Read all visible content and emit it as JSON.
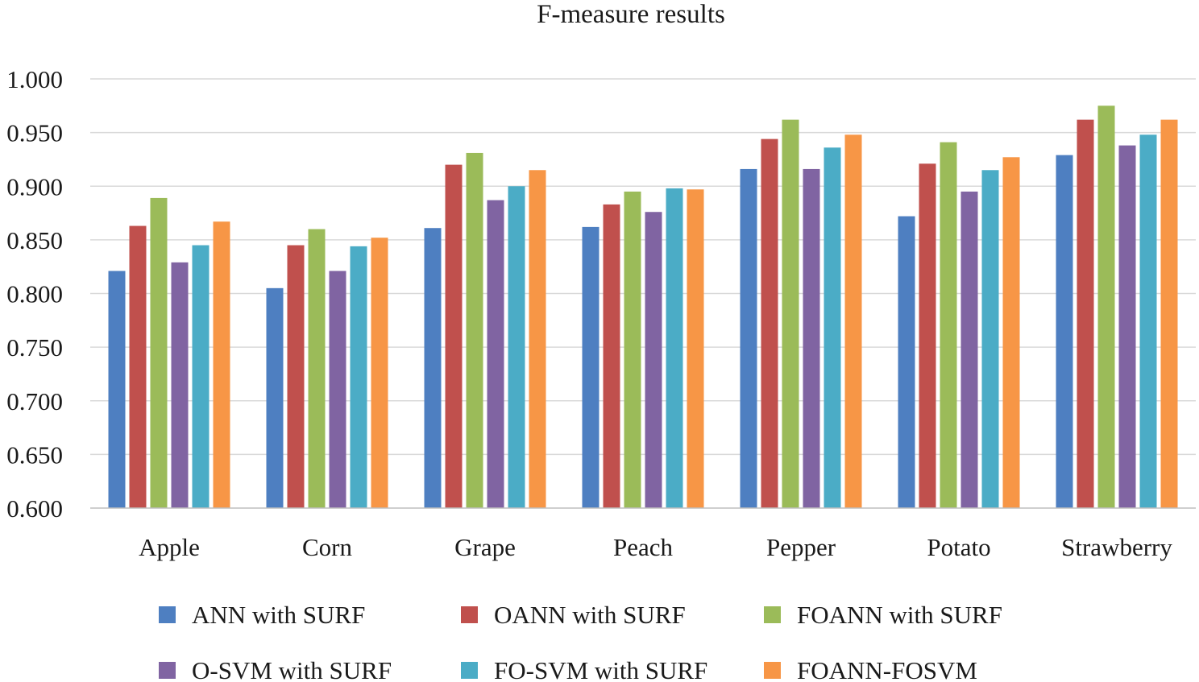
{
  "chart_data": {
    "type": "bar",
    "title": "F-measure results",
    "xlabel": "",
    "ylabel": "",
    "ylim": [
      0.6,
      1.0
    ],
    "ytick_step": 0.05,
    "ytick_labels": [
      "0.600",
      "0.650",
      "0.700",
      "0.750",
      "0.800",
      "0.850",
      "0.900",
      "0.950",
      "1.000"
    ],
    "grid": true,
    "legend_position": "bottom",
    "categories": [
      "Apple",
      "Corn",
      "Grape",
      "Peach",
      "Pepper",
      "Potato",
      "Strawberry"
    ],
    "series": [
      {
        "name": "ANN with SURF",
        "color": "#4e7fc1",
        "values": [
          0.821,
          0.805,
          0.861,
          0.862,
          0.916,
          0.872,
          0.929
        ]
      },
      {
        "name": "OANN with SURF",
        "color": "#c0504d",
        "values": [
          0.863,
          0.845,
          0.92,
          0.883,
          0.944,
          0.921,
          0.962
        ]
      },
      {
        "name": "FOANN with SURF",
        "color": "#9bbb59",
        "values": [
          0.889,
          0.86,
          0.931,
          0.895,
          0.962,
          0.941,
          0.975
        ]
      },
      {
        "name": "O-SVM with SURF",
        "color": "#8064a2",
        "values": [
          0.829,
          0.821,
          0.887,
          0.876,
          0.916,
          0.895,
          0.938
        ]
      },
      {
        "name": "FO-SVM with SURF",
        "color": "#4bacc6",
        "values": [
          0.845,
          0.844,
          0.9,
          0.898,
          0.936,
          0.915,
          0.948
        ]
      },
      {
        "name": "FOANN-FOSVM",
        "color": "#f79646",
        "values": [
          0.867,
          0.852,
          0.915,
          0.897,
          0.948,
          0.927,
          0.962
        ]
      }
    ]
  }
}
